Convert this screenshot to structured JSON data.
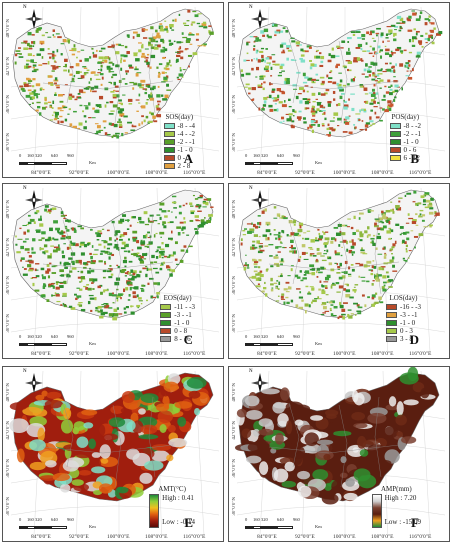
{
  "panels": [
    {
      "letter": "A",
      "legend_title": "SOS(day)",
      "legend_type": "classes",
      "classes": [
        {
          "label": "-8 - -4",
          "color": "#7fe0c8"
        },
        {
          "label": "-4 - -2",
          "color": "#a6c94a"
        },
        {
          "label": "-2 - -1",
          "color": "#5aa02a"
        },
        {
          "label": "-1 - 0",
          "color": "#2f8f2f"
        },
        {
          "label": "0 - 2",
          "color": "#b84a2a"
        },
        {
          "label": "2 - 8",
          "color": "#e0a040"
        }
      ],
      "palette": [
        "#2f8f2f",
        "#3fa03a",
        "#a6c94a",
        "#5aa02a",
        "#b84a2a",
        "#e0a040"
      ]
    },
    {
      "letter": "B",
      "legend_title": "POS(day)",
      "legend_type": "classes",
      "classes": [
        {
          "label": "-8 - -2",
          "color": "#7fe0c8"
        },
        {
          "label": "-2 - -1",
          "color": "#3fa03a"
        },
        {
          "label": "-1 - 0",
          "color": "#2f8f2f"
        },
        {
          "label": "0 - 6",
          "color": "#b84a2a"
        },
        {
          "label": "6 - 12",
          "color": "#f0e040"
        }
      ],
      "palette": [
        "#2f8f2f",
        "#3fa03a",
        "#a6c94a",
        "#b84a2a",
        "#c8562e",
        "#7fe0c8"
      ]
    },
    {
      "letter": "C",
      "legend_title": "EOS(day)",
      "legend_type": "classes",
      "classes": [
        {
          "label": "-11 - -3",
          "color": "#a6c94a"
        },
        {
          "label": "-3 - -1",
          "color": "#5aa02a"
        },
        {
          "label": "-1 - 0",
          "color": "#2f8f2f"
        },
        {
          "label": "0 - 8",
          "color": "#b84a2a"
        },
        {
          "label": "8 - 16",
          "color": "#9a9a9a"
        }
      ],
      "palette": [
        "#2f8f2f",
        "#3fa03a",
        "#5aa02a",
        "#b84a2a",
        "#a6c94a",
        "#2f8f2f"
      ]
    },
    {
      "letter": "D",
      "legend_title": "LOS(day)",
      "legend_type": "classes",
      "classes": [
        {
          "label": "-16 - -3",
          "color": "#b84a2a"
        },
        {
          "label": "-3 - -1",
          "color": "#e0a040"
        },
        {
          "label": "-1 - 0",
          "color": "#2f8f2f"
        },
        {
          "label": "0 - 3",
          "color": "#a6c94a"
        },
        {
          "label": "3 - 8",
          "color": "#9a9a9a"
        }
      ],
      "palette": [
        "#2f8f2f",
        "#a6c94a",
        "#8fb840",
        "#b84a2a",
        "#3fa03a",
        "#c0c86a"
      ]
    },
    {
      "letter": "E",
      "legend_title": "AMT(°C)",
      "legend_type": "ramp",
      "high_label": "High : 0.41",
      "low_label": "Low : -0.14",
      "ramp_colors": [
        "#1f8a3a",
        "#8fcf3a",
        "#f0c020",
        "#e06010",
        "#a01e0e",
        "#5a0a06"
      ],
      "palette": [
        "#a01e0e",
        "#c83a10",
        "#e06010",
        "#f0a020",
        "#8fcf3a",
        "#1f8a3a",
        "#dddddd",
        "#7fe0c8"
      ]
    },
    {
      "letter": "F",
      "legend_title": "AMP(mm)",
      "legend_type": "ramp",
      "high_label": "High : 7.20",
      "low_label": "Low : -15.09",
      "ramp_colors": [
        "#ffffff",
        "#cfcfcf",
        "#7a4030",
        "#5a1e10",
        "#f0a020",
        "#1f8a3a"
      ],
      "palette": [
        "#5a1e10",
        "#6e2a16",
        "#7a4030",
        "#c8c8c8",
        "#eeeeee",
        "#5a1e10",
        "#2f8f2f",
        "#9a9a9a"
      ]
    }
  ],
  "axis": {
    "x_ticks": [
      "84°0'0\"E",
      "92°0'0\"E",
      "100°0'0\"E",
      "108°0'0\"E",
      "116°0'0\"E"
    ],
    "y_ticks": [
      "48°0'0\"N",
      "42°0'0\"N",
      "36°0'0\"N",
      "30°0'0\"N"
    ]
  },
  "scalebar": {
    "numbers": [
      "0",
      "160",
      "320",
      "640",
      "960"
    ],
    "unit": "Km"
  },
  "compass_label": "N"
}
